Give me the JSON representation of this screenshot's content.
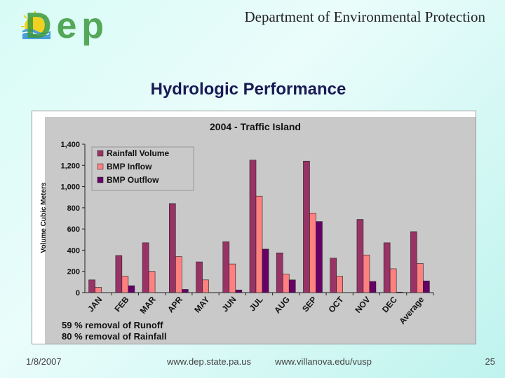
{
  "header": {
    "org_title": "Department of Environmental Protection",
    "slide_title": "Hydrologic Performance"
  },
  "chart_data": {
    "type": "bar",
    "title": "2004 - Traffic Island",
    "ylabel": "Volume Cubic Meters",
    "xlabel": "",
    "ylim": [
      0,
      1400
    ],
    "yticks": [
      0,
      200,
      400,
      600,
      800,
      1000,
      1200,
      1400
    ],
    "ytick_labels": [
      "0",
      "200",
      "400",
      "600",
      "800",
      "1,000",
      "1,200",
      "1,400"
    ],
    "categories": [
      "JAN",
      "FEB",
      "MAR",
      "APR",
      "MAY",
      "JUN",
      "JUL",
      "AUG",
      "SEP",
      "OCT",
      "NOV",
      "DEC",
      "Average"
    ],
    "series": [
      {
        "name": "Rainfall Volume",
        "color": "#993366",
        "values": [
          120,
          350,
          470,
          840,
          290,
          480,
          1250,
          375,
          1240,
          325,
          690,
          470,
          575
        ]
      },
      {
        "name": "BMP  Inflow",
        "color": "#ff8080",
        "values": [
          50,
          155,
          200,
          340,
          120,
          270,
          910,
          175,
          750,
          155,
          355,
          225,
          275
        ]
      },
      {
        "name": "BMP  Outflow",
        "color": "#660066",
        "values": [
          0,
          65,
          0,
          30,
          0,
          25,
          410,
          120,
          670,
          0,
          105,
          5,
          110
        ]
      }
    ],
    "legend_position": "top-left",
    "grid": false,
    "annotations": [
      "59 % removal of Runoff",
      "80 % removal of Rainfall"
    ]
  },
  "footer": {
    "date": "1/8/2007",
    "url1": "www.dep.state.pa.us",
    "url2": "www.villanova.edu/vusp",
    "page": "25"
  }
}
